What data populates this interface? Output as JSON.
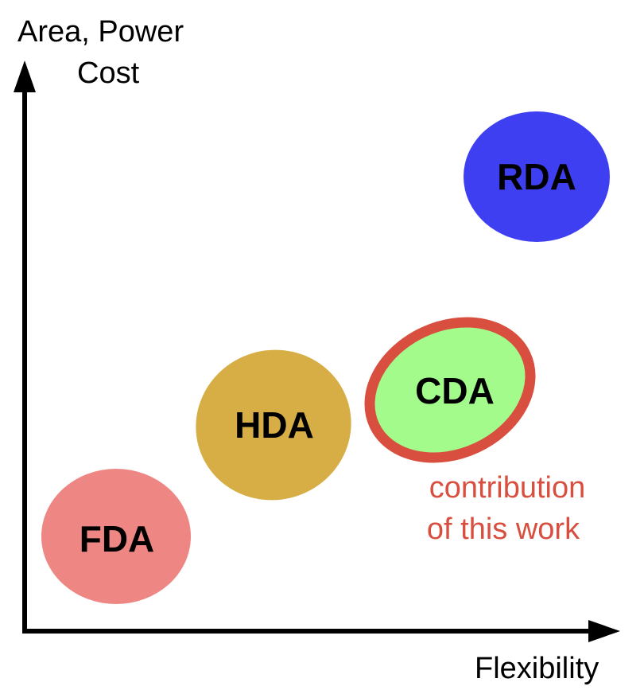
{
  "axes": {
    "y_label_line1": "Area, Power",
    "y_label_line2": "Cost",
    "x_label": "Flexibility"
  },
  "nodes": {
    "rda": {
      "label": "RDA",
      "color": "#3f3ff2"
    },
    "cda": {
      "label": "CDA",
      "color": "#a3fb8c",
      "border_color": "#d94f3f"
    },
    "hda": {
      "label": "HDA",
      "color": "#d6ae45"
    },
    "fda": {
      "label": "FDA",
      "color": "#ee8784"
    }
  },
  "annotation": {
    "line1": "contribution",
    "line2": "of this work",
    "color": "#d94f3f"
  }
}
